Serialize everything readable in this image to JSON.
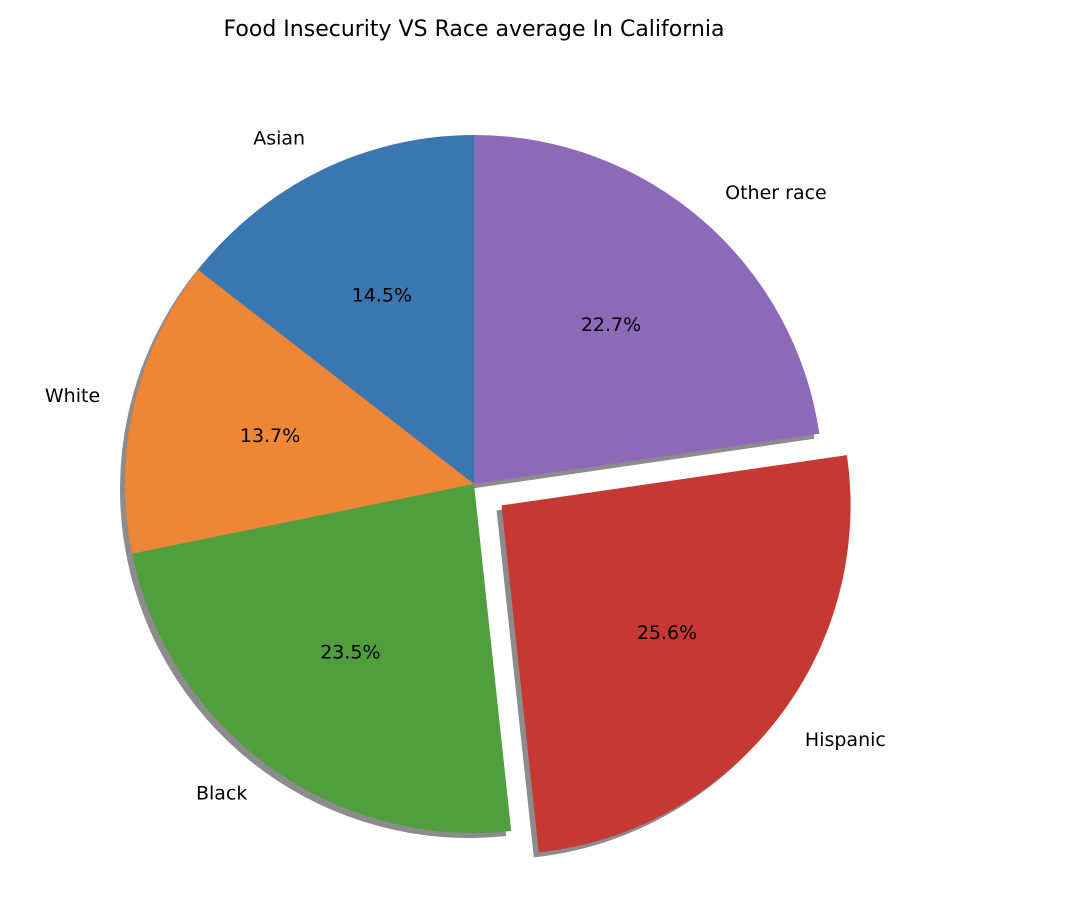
{
  "chart_data": {
    "type": "pie",
    "title": "Food Insecurity VS Race average In California",
    "categories": [
      "Asian",
      "White",
      "Black",
      "Hispanic",
      "Other race"
    ],
    "values": [
      14.5,
      13.7,
      23.5,
      25.6,
      22.7
    ],
    "percent_labels": [
      "14.5%",
      "13.7%",
      "23.5%",
      "25.6%",
      "22.7%"
    ],
    "colors": [
      "#3a76af",
      "#ef8636",
      "#519e3e",
      "#c53932",
      "#8d6ab8"
    ],
    "exploded": [
      "Hispanic"
    ],
    "shadow": true,
    "start_angle_deg": 90,
    "direction": "counterclockwise"
  }
}
